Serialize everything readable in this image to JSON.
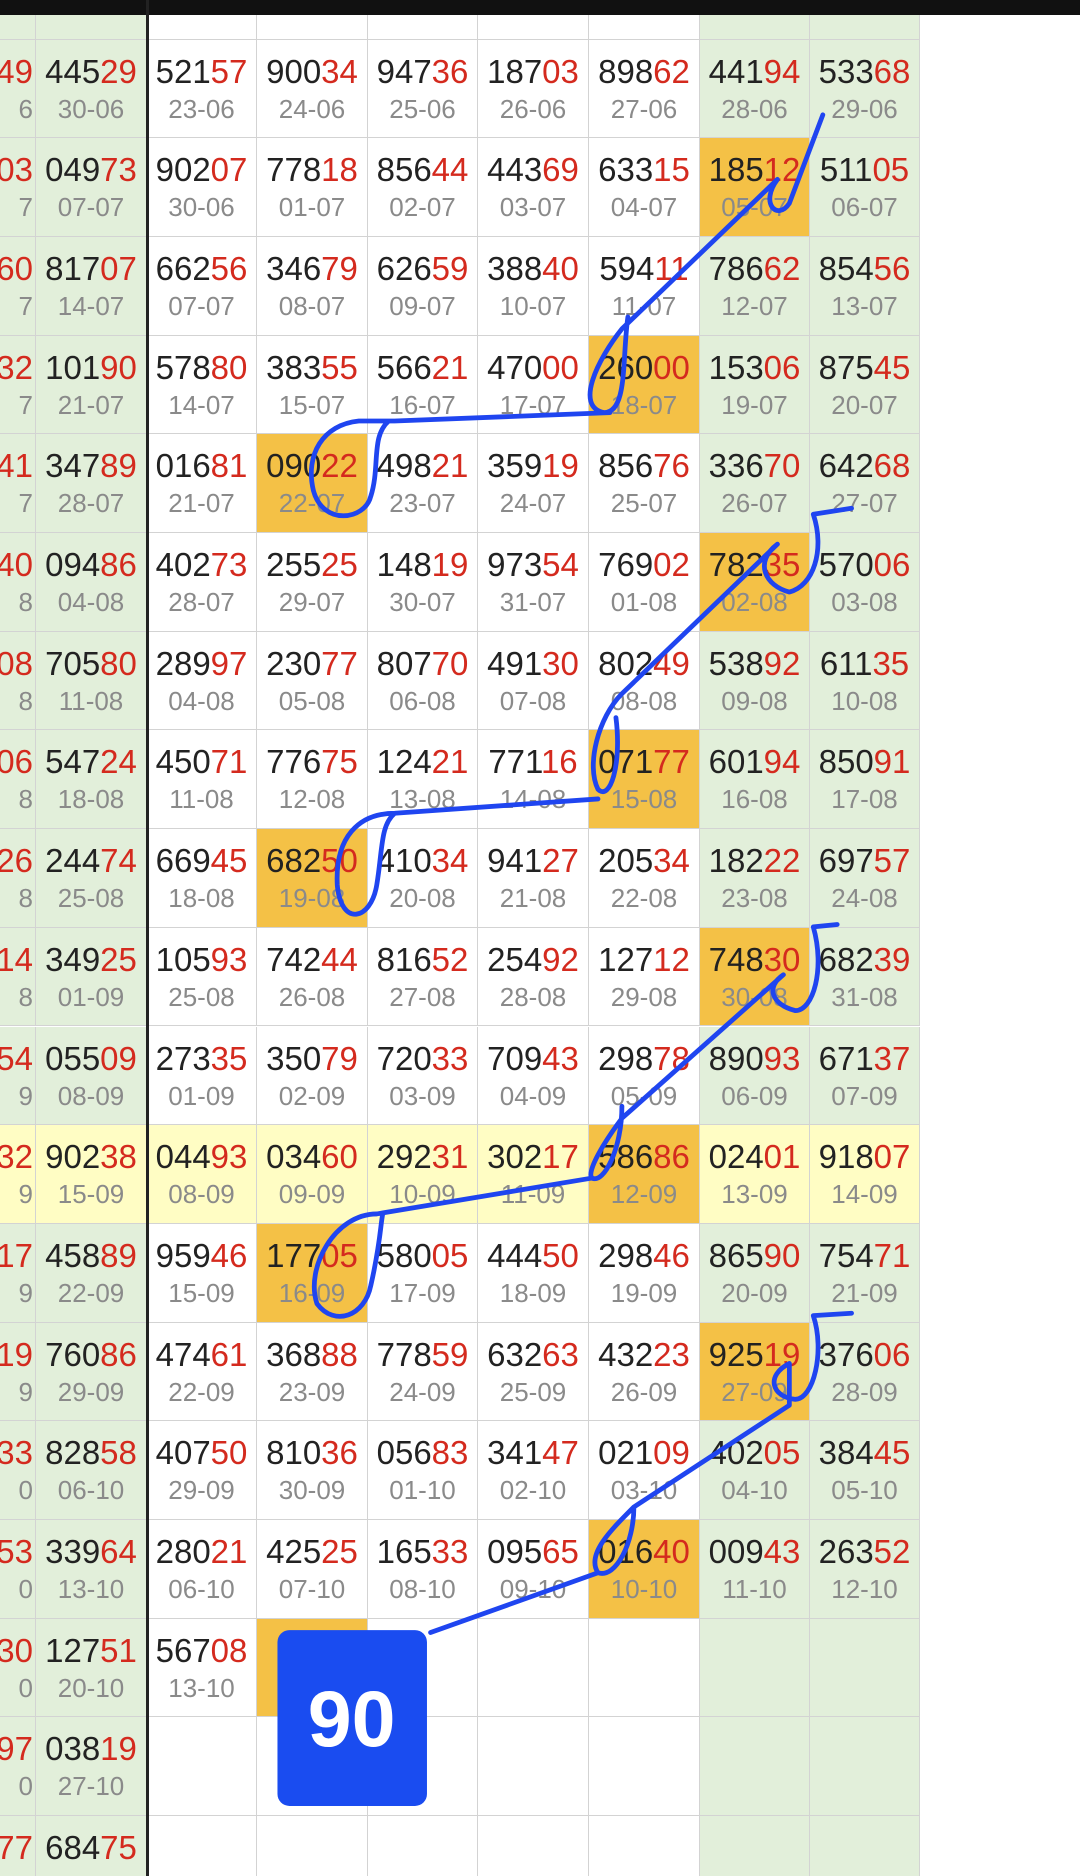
{
  "badge": "90",
  "rows": [
    {
      "a": [
        "49",
        "6"
      ],
      "cells": [
        [
          "445",
          "29",
          "30-06"
        ],
        [
          "521",
          "57",
          "23-06"
        ],
        [
          "900",
          "34",
          "24-06"
        ],
        [
          "947",
          "36",
          "25-06"
        ],
        [
          "187",
          "03",
          "26-06"
        ],
        [
          "898",
          "62",
          "27-06"
        ],
        [
          "441",
          "94",
          "28-06"
        ],
        [
          "533",
          "68",
          "29-06"
        ]
      ]
    },
    {
      "a": [
        "03",
        "7"
      ],
      "cells": [
        [
          "049",
          "73",
          "07-07"
        ],
        [
          "902",
          "07",
          "30-06"
        ],
        [
          "778",
          "18",
          "01-07"
        ],
        [
          "856",
          "44",
          "02-07"
        ],
        [
          "443",
          "69",
          "03-07"
        ],
        [
          "633",
          "15",
          "04-07"
        ],
        [
          "185",
          "12",
          "05-07"
        ],
        [
          "511",
          "05",
          "06-07"
        ]
      ]
    },
    {
      "a": [
        "60",
        "7"
      ],
      "cells": [
        [
          "817",
          "07",
          "14-07"
        ],
        [
          "662",
          "56",
          "07-07"
        ],
        [
          "346",
          "79",
          "08-07"
        ],
        [
          "626",
          "59",
          "09-07"
        ],
        [
          "388",
          "40",
          "10-07"
        ],
        [
          "594",
          "11",
          "11-07"
        ],
        [
          "786",
          "62",
          "12-07"
        ],
        [
          "854",
          "56",
          "13-07"
        ]
      ]
    },
    {
      "a": [
        "32",
        "7"
      ],
      "cells": [
        [
          "101",
          "90",
          "21-07"
        ],
        [
          "578",
          "80",
          "14-07"
        ],
        [
          "383",
          "55",
          "15-07"
        ],
        [
          "566",
          "21",
          "16-07"
        ],
        [
          "470",
          "00",
          "17-07"
        ],
        [
          "260",
          "00",
          "18-07"
        ],
        [
          "153",
          "06",
          "19-07"
        ],
        [
          "875",
          "45",
          "20-07"
        ]
      ]
    },
    {
      "a": [
        "41",
        "7"
      ],
      "cells": [
        [
          "347",
          "89",
          "28-07"
        ],
        [
          "016",
          "81",
          "21-07"
        ],
        [
          "090",
          "22",
          "22-07"
        ],
        [
          "498",
          "21",
          "23-07"
        ],
        [
          "359",
          "19",
          "24-07"
        ],
        [
          "856",
          "76",
          "25-07"
        ],
        [
          "336",
          "70",
          "26-07"
        ],
        [
          "642",
          "68",
          "27-07"
        ]
      ]
    },
    {
      "a": [
        "40",
        "8"
      ],
      "cells": [
        [
          "094",
          "86",
          "04-08"
        ],
        [
          "402",
          "73",
          "28-07"
        ],
        [
          "255",
          "25",
          "29-07"
        ],
        [
          "148",
          "19",
          "30-07"
        ],
        [
          "973",
          "54",
          "31-07"
        ],
        [
          "769",
          "02",
          "01-08"
        ],
        [
          "782",
          "35",
          "02-08"
        ],
        [
          "570",
          "06",
          "03-08"
        ]
      ]
    },
    {
      "a": [
        "08",
        "8"
      ],
      "cells": [
        [
          "705",
          "80",
          "11-08"
        ],
        [
          "289",
          "97",
          "04-08"
        ],
        [
          "230",
          "77",
          "05-08"
        ],
        [
          "807",
          "70",
          "06-08"
        ],
        [
          "491",
          "30",
          "07-08"
        ],
        [
          "802",
          "49",
          "08-08"
        ],
        [
          "538",
          "92",
          "09-08"
        ],
        [
          "611",
          "35",
          "10-08"
        ]
      ]
    },
    {
      "a": [
        "06",
        "8"
      ],
      "cells": [
        [
          "547",
          "24",
          "18-08"
        ],
        [
          "450",
          "71",
          "11-08"
        ],
        [
          "776",
          "75",
          "12-08"
        ],
        [
          "124",
          "21",
          "13-08"
        ],
        [
          "771",
          "16",
          "14-08"
        ],
        [
          "071",
          "77",
          "15-08"
        ],
        [
          "601",
          "94",
          "16-08"
        ],
        [
          "850",
          "91",
          "17-08"
        ]
      ]
    },
    {
      "a": [
        "26",
        "8"
      ],
      "cells": [
        [
          "244",
          "74",
          "25-08"
        ],
        [
          "669",
          "45",
          "18-08"
        ],
        [
          "682",
          "50",
          "19-08"
        ],
        [
          "410",
          "34",
          "20-08"
        ],
        [
          "941",
          "27",
          "21-08"
        ],
        [
          "205",
          "34",
          "22-08"
        ],
        [
          "182",
          "22",
          "23-08"
        ],
        [
          "697",
          "57",
          "24-08"
        ]
      ]
    },
    {
      "a": [
        "14",
        "8"
      ],
      "cells": [
        [
          "349",
          "25",
          "01-09"
        ],
        [
          "105",
          "93",
          "25-08"
        ],
        [
          "742",
          "44",
          "26-08"
        ],
        [
          "816",
          "52",
          "27-08"
        ],
        [
          "254",
          "92",
          "28-08"
        ],
        [
          "127",
          "12",
          "29-08"
        ],
        [
          "748",
          "30",
          "30-08"
        ],
        [
          "682",
          "39",
          "31-08"
        ]
      ]
    },
    {
      "a": [
        "54",
        "9"
      ],
      "cells": [
        [
          "055",
          "09",
          "08-09"
        ],
        [
          "273",
          "35",
          "01-09"
        ],
        [
          "350",
          "79",
          "02-09"
        ],
        [
          "720",
          "33",
          "03-09"
        ],
        [
          "709",
          "43",
          "04-09"
        ],
        [
          "298",
          "78",
          "05-09"
        ],
        [
          "890",
          "93",
          "06-09"
        ],
        [
          "671",
          "37",
          "07-09"
        ]
      ]
    },
    {
      "a": [
        "32",
        "9"
      ],
      "cells": [
        [
          "902",
          "38",
          "15-09"
        ],
        [
          "044",
          "93",
          "08-09"
        ],
        [
          "034",
          "60",
          "09-09"
        ],
        [
          "292",
          "31",
          "10-09"
        ],
        [
          "302",
          "17",
          "11-09"
        ],
        [
          "586",
          "86",
          "12-09"
        ],
        [
          "024",
          "01",
          "13-09"
        ],
        [
          "918",
          "07",
          "14-09"
        ]
      ]
    },
    {
      "a": [
        "17",
        "9"
      ],
      "cells": [
        [
          "458",
          "89",
          "22-09"
        ],
        [
          "959",
          "46",
          "15-09"
        ],
        [
          "177",
          "05",
          "16-09"
        ],
        [
          "580",
          "05",
          "17-09"
        ],
        [
          "444",
          "50",
          "18-09"
        ],
        [
          "298",
          "46",
          "19-09"
        ],
        [
          "865",
          "90",
          "20-09"
        ],
        [
          "754",
          "71",
          "21-09"
        ]
      ]
    },
    {
      "a": [
        "19",
        "9"
      ],
      "cells": [
        [
          "760",
          "86",
          "29-09"
        ],
        [
          "474",
          "61",
          "22-09"
        ],
        [
          "368",
          "88",
          "23-09"
        ],
        [
          "778",
          "59",
          "24-09"
        ],
        [
          "632",
          "63",
          "25-09"
        ],
        [
          "432",
          "23",
          "26-09"
        ],
        [
          "925",
          "19",
          "27-09"
        ],
        [
          "376",
          "06",
          "28-09"
        ]
      ]
    },
    {
      "a": [
        "33",
        "0"
      ],
      "cells": [
        [
          "828",
          "58",
          "06-10"
        ],
        [
          "407",
          "50",
          "29-09"
        ],
        [
          "810",
          "36",
          "30-09"
        ],
        [
          "056",
          "83",
          "01-10"
        ],
        [
          "341",
          "47",
          "02-10"
        ],
        [
          "021",
          "09",
          "03-10"
        ],
        [
          "402",
          "05",
          "04-10"
        ],
        [
          "384",
          "45",
          "05-10"
        ]
      ]
    },
    {
      "a": [
        "53",
        "0"
      ],
      "cells": [
        [
          "339",
          "64",
          "13-10"
        ],
        [
          "280",
          "21",
          "06-10"
        ],
        [
          "425",
          "25",
          "07-10"
        ],
        [
          "165",
          "33",
          "08-10"
        ],
        [
          "095",
          "65",
          "09-10"
        ],
        [
          "016",
          "40",
          "10-10"
        ],
        [
          "009",
          "43",
          "11-10"
        ],
        [
          "263",
          "52",
          "12-10"
        ]
      ]
    },
    {
      "a": [
        "30",
        "0"
      ],
      "cells": [
        [
          "127",
          "51",
          "20-10"
        ],
        [
          "567",
          "08",
          "13-10"
        ]
      ]
    },
    {
      "a": [
        "97",
        "0"
      ],
      "cells": [
        [
          "038",
          "19",
          "27-10"
        ]
      ]
    },
    {
      "a": [
        "77"
      ],
      "cells": [
        [
          "684",
          "75"
        ]
      ]
    }
  ]
}
